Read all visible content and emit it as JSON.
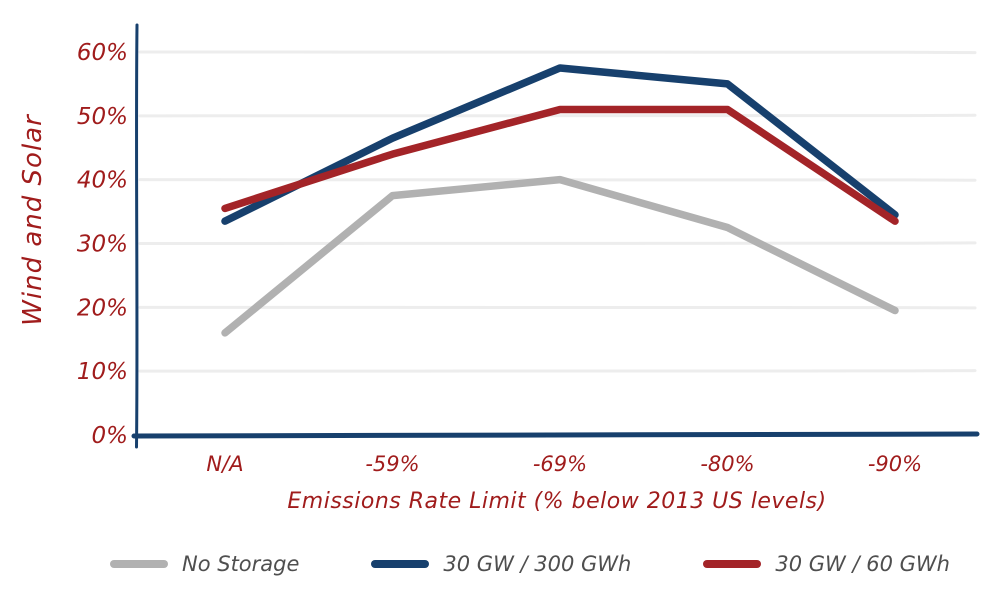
{
  "chart_data": {
    "type": "line",
    "categories": [
      "N/A",
      "-59%",
      "-69%",
      "-80%",
      "-90%"
    ],
    "series": [
      {
        "name": "No Storage",
        "color": "#b1b1b1",
        "values": [
          16,
          37.5,
          40,
          32.5,
          19.5
        ]
      },
      {
        "name": "30 GW / 300 GWh",
        "color": "#17406d",
        "values": [
          33.5,
          46.5,
          57.5,
          55,
          34.5
        ]
      },
      {
        "name": "30 GW / 60 GWh",
        "color": "#a32428",
        "values": [
          35.5,
          44,
          51,
          51,
          33.5
        ]
      }
    ],
    "title": "",
    "ylabel": "Wind and Solar",
    "xlabel": "Emissions Rate Limit (% below 2013 US levels)",
    "yticks": [
      0,
      10,
      20,
      30,
      40,
      50,
      60
    ],
    "ytick_suffix": "%",
    "ylim": [
      0,
      60
    ],
    "grid": "horizontal",
    "legend_position": "bottom",
    "colors": {
      "axis": "#17406d",
      "grid_line": "#ededed",
      "tick_label": "#a01c1c",
      "legend_text": "#4f4f4f",
      "background": "#ffffff"
    }
  }
}
